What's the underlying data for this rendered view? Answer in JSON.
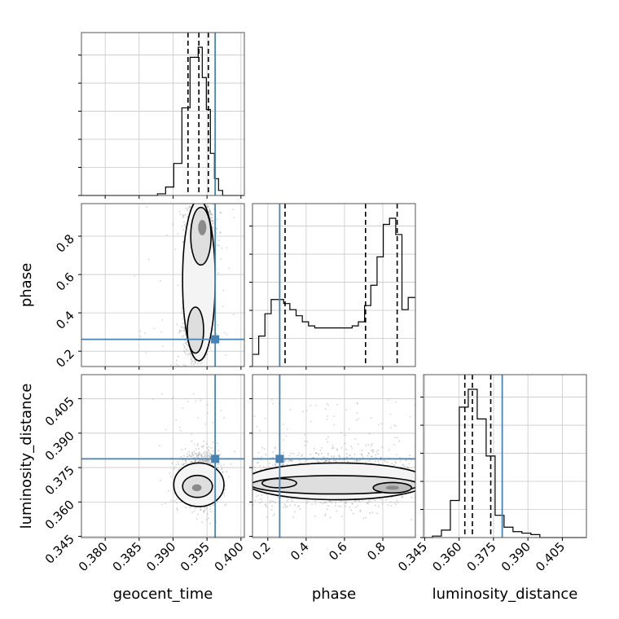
{
  "chart_data": {
    "type": "corner",
    "parameters": [
      "geocent_time",
      "phase",
      "luminosity_distance"
    ],
    "axis_labels": {
      "x": [
        "geocent_time",
        "phase",
        "luminosity_distance"
      ],
      "y": [
        "",
        "phase",
        "luminosity_distance"
      ]
    },
    "ranges": {
      "geocent_time": [
        0.3765,
        0.4005
      ],
      "phase": [
        0.12,
        0.97
      ],
      "luminosity_distance": [
        0.3445,
        0.4155
      ]
    },
    "ticks": {
      "geocent_time": {
        "values": [
          0.38,
          0.385,
          0.39,
          0.395,
          0.4
        ],
        "labels": [
          "0.380",
          "0.385",
          "0.390",
          "0.395",
          "0.400"
        ]
      },
      "phase": {
        "values": [
          0.2,
          0.4,
          0.6,
          0.8
        ],
        "labels": [
          "0.2",
          "0.4",
          "0.6",
          "0.8"
        ]
      },
      "luminosity_distance": {
        "values": [
          0.345,
          0.36,
          0.375,
          0.39,
          0.405
        ],
        "labels": [
          "0.345",
          "0.360",
          "0.375",
          "0.390",
          "0.405"
        ]
      }
    },
    "truths": {
      "geocent_time": 0.3962,
      "phase": 0.262,
      "luminosity_distance": 0.3788
    },
    "quantiles": {
      "geocent_time": [
        0.3922,
        0.3938,
        0.3952
      ],
      "phase": [
        0.29,
        0.71,
        0.875
      ],
      "luminosity_distance": [
        0.3625,
        0.3658,
        0.3738
      ]
    },
    "histograms": {
      "geocent_time": {
        "edges": [
          0.3765,
          0.3877,
          0.3889,
          0.3901,
          0.3913,
          0.3925,
          0.3937,
          0.3943,
          0.3949,
          0.3955,
          0.3961,
          0.3967,
          0.3973,
          0.3979,
          0.4005
        ],
        "counts": [
          0,
          1,
          5,
          19,
          52,
          82,
          88,
          70,
          51,
          25,
          10,
          3,
          0,
          0
        ]
      },
      "phase": {
        "edges": [
          0.12,
          0.1525,
          0.185,
          0.2175,
          0.25,
          0.2825,
          0.315,
          0.3475,
          0.38,
          0.4125,
          0.445,
          0.4775,
          0.51,
          0.5425,
          0.575,
          0.6075,
          0.64,
          0.6725,
          0.705,
          0.7375,
          0.77,
          0.8025,
          0.835,
          0.8675,
          0.9,
          0.9325,
          0.97
        ],
        "counts": [
          6,
          15,
          26,
          33,
          33,
          31,
          28,
          25,
          22,
          20,
          19,
          19,
          19,
          19,
          19,
          19,
          20,
          22,
          30,
          40,
          54,
          70,
          73,
          65,
          28,
          34
        ]
      },
      "luminosity_distance": {
        "edges": [
          0.3445,
          0.3484,
          0.3523,
          0.3562,
          0.3601,
          0.364,
          0.3679,
          0.3718,
          0.3757,
          0.3796,
          0.3835,
          0.3874,
          0.3913,
          0.3952,
          0.4155
        ],
        "counts": [
          0,
          1,
          5,
          25,
          88,
          100,
          80,
          55,
          15,
          7,
          4,
          3,
          2,
          0
        ]
      }
    },
    "density_2d": [
      {
        "x": "geocent_time",
        "y": "phase",
        "modes": [
          {
            "x": 0.3943,
            "y": 0.845
          },
          {
            "x": 0.3934,
            "y": 0.29
          }
        ]
      },
      {
        "x": "geocent_time",
        "y": "luminosity_distance",
        "modes": [
          {
            "x": 0.3935,
            "y": 0.3662
          }
        ]
      },
      {
        "x": "phase",
        "y": "luminosity_distance",
        "modes": [
          {
            "x": 0.85,
            "y": 0.3662
          },
          {
            "x": 0.25,
            "y": 0.3682
          }
        ]
      }
    ],
    "truth_color": "#4682b4",
    "hist_color": "#000000",
    "grid": true
  }
}
